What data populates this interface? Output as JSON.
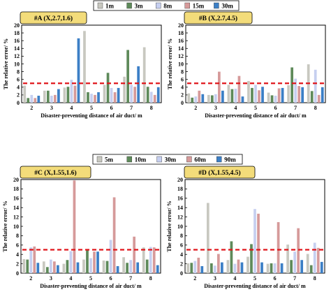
{
  "chart_data": [
    {
      "type": "bar",
      "panel_label": "#A (X,2.7,1.6)",
      "xlabel": "Disaster-preventing distance of air duct/ m",
      "ylabel": "The relative error/ %",
      "ylim": [
        0,
        20
      ],
      "yticks": [
        0,
        2,
        4,
        6,
        8,
        10,
        12,
        14,
        16,
        18,
        20
      ],
      "categories": [
        "2",
        "3",
        "4",
        "5",
        "6",
        "7",
        "8"
      ],
      "threshold": 5,
      "series": [
        {
          "name": "1m",
          "color": "#c8c8c0",
          "values": [
            4.4,
            3.1,
            3.9,
            18.5,
            4.6,
            6.7,
            14.3
          ]
        },
        {
          "name": "3m",
          "color": "#5e8a5a",
          "values": [
            1.2,
            3.1,
            4.1,
            2.7,
            7.7,
            13.6,
            4.1
          ]
        },
        {
          "name": "8m",
          "color": "#c6cff0",
          "values": [
            2.0,
            1.8,
            5.9,
            2.3,
            3.8,
            4.6,
            2.8
          ]
        },
        {
          "name": "15m",
          "color": "#d69a9a",
          "values": [
            1.2,
            2.0,
            4.4,
            2.0,
            2.7,
            4.1,
            2.0
          ]
        },
        {
          "name": "30m",
          "color": "#3c7fc6",
          "values": [
            1.8,
            3.5,
            16.6,
            2.7,
            3.8,
            9.4,
            4.0
          ]
        }
      ]
    },
    {
      "type": "bar",
      "panel_label": "#B (X,2.7,4.5)",
      "xlabel": "Disaster-preventing distance of air duct/ m",
      "ylabel": "The relative error/ %",
      "ylim": [
        0,
        20
      ],
      "yticks": [
        0,
        2,
        4,
        6,
        8,
        10,
        12,
        14,
        16,
        18,
        20
      ],
      "categories": [
        "2",
        "3",
        "4",
        "5",
        "6",
        "7",
        "8"
      ],
      "threshold": 5,
      "series": [
        {
          "name": "1m",
          "color": "#c8c8c0",
          "values": [
            2.4,
            2.0,
            4.6,
            5.6,
            2.6,
            4.5,
            9.9
          ]
        },
        {
          "name": "3m",
          "color": "#5e8a5a",
          "values": [
            1.3,
            1.9,
            3.5,
            3.8,
            1.9,
            9.1,
            3.0
          ]
        },
        {
          "name": "8m",
          "color": "#c6cff0",
          "values": [
            1.6,
            2.2,
            3.6,
            4.6,
            1.8,
            6.2,
            8.5
          ]
        },
        {
          "name": "15m",
          "color": "#d69a9a",
          "values": [
            3.1,
            8.0,
            6.9,
            3.2,
            3.7,
            4.3,
            2.0
          ]
        },
        {
          "name": "30m",
          "color": "#3c7fc6",
          "values": [
            2.2,
            3.1,
            1.6,
            4.1,
            3.8,
            4.0,
            4.0
          ]
        }
      ]
    },
    {
      "type": "bar",
      "panel_label": "#C (X,1.55,1.6)",
      "xlabel": "Disaster-preventing distance of air duct/ m",
      "ylabel": "The relative error/ %",
      "ylim": [
        0,
        20
      ],
      "yticks": [
        0,
        2,
        4,
        6,
        8,
        10,
        12,
        14,
        16,
        18,
        20
      ],
      "categories": [
        "2",
        "3",
        "4",
        "5",
        "6",
        "7",
        "8"
      ],
      "threshold": 5,
      "series": [
        {
          "name": "5m",
          "color": "#c8c8c0",
          "values": [
            3.0,
            2.5,
            2.0,
            2.9,
            2.7,
            3.4,
            5.5
          ]
        },
        {
          "name": "10m",
          "color": "#5e8a5a",
          "values": [
            2.9,
            1.3,
            2.8,
            4.9,
            2.6,
            2.2,
            2.9
          ]
        },
        {
          "name": "30m",
          "color": "#c6cff0",
          "values": [
            5.5,
            2.9,
            4.7,
            3.2,
            7.1,
            2.8,
            5.6
          ]
        },
        {
          "name": "60m",
          "color": "#d69a9a",
          "values": [
            5.7,
            2.5,
            19.8,
            4.6,
            16.2,
            7.8,
            5.5
          ]
        },
        {
          "name": "90m",
          "color": "#3c7fc6",
          "values": [
            2.2,
            1.7,
            2.3,
            4.6,
            1.5,
            2.3,
            1.7
          ]
        }
      ]
    },
    {
      "type": "bar",
      "panel_label": "#D (X,1.55,4.5)",
      "xlabel": "Disaster-preventing distance of air duct/ m",
      "ylabel": "The relative error/ %",
      "ylim": [
        0,
        20
      ],
      "yticks": [
        0,
        2,
        4,
        6,
        8,
        10,
        12,
        14,
        16,
        18,
        20
      ],
      "categories": [
        "2",
        "3",
        "4",
        "5",
        "6",
        "7",
        "8"
      ],
      "threshold": 5,
      "series": [
        {
          "name": "5m",
          "color": "#c8c8c0",
          "values": [
            2.1,
            15.0,
            2.8,
            3.5,
            2.0,
            6.1,
            4.1
          ]
        },
        {
          "name": "10m",
          "color": "#5e8a5a",
          "values": [
            2.2,
            2.1,
            6.8,
            6.2,
            2.1,
            2.8,
            1.7
          ]
        },
        {
          "name": "30m",
          "color": "#c6cff0",
          "values": [
            2.6,
            1.6,
            2.0,
            13.7,
            2.1,
            4.6,
            6.5
          ]
        },
        {
          "name": "60m",
          "color": "#d69a9a",
          "values": [
            3.3,
            4.1,
            2.9,
            12.7,
            10.9,
            9.6,
            5.4
          ]
        },
        {
          "name": "90m",
          "color": "#3c7fc6",
          "values": [
            1.5,
            2.3,
            2.3,
            2.3,
            2.1,
            2.8,
            2.4
          ]
        }
      ]
    }
  ]
}
